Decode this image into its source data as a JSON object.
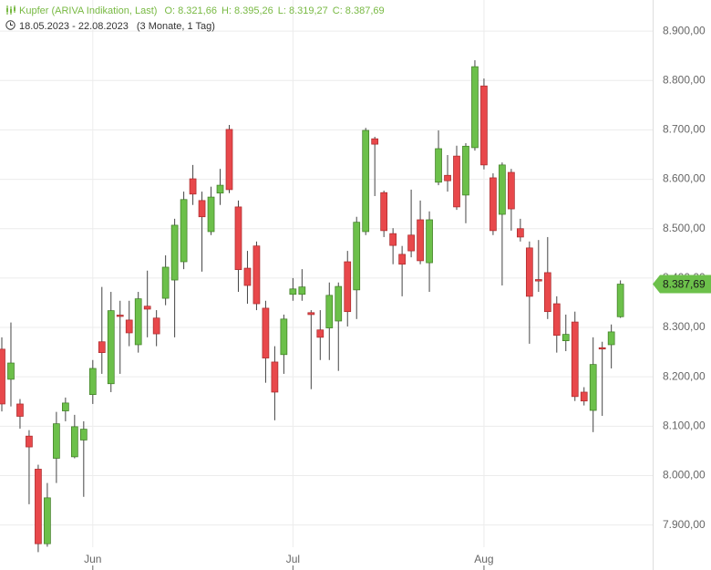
{
  "chart_data": {
    "type": "candlestick",
    "title": "Kupfer (ARIVA Indikation, Last)",
    "ohlc_header": [
      {
        "key": "O:",
        "value": "8.321,66"
      },
      {
        "key": "H:",
        "value": "8.395,26"
      },
      {
        "key": "L:",
        "value": "8.319,27"
      },
      {
        "key": "C:",
        "value": "8.387,69"
      }
    ],
    "date_range": "18.05.2023 - 22.08.2023",
    "period": "(3 Monate, 1 Tag)",
    "categories": [
      null,
      null,
      null,
      null,
      null,
      null,
      null,
      null,
      null,
      null,
      "Jun",
      null,
      null,
      null,
      null,
      null,
      null,
      null,
      null,
      null,
      null,
      null,
      null,
      null,
      null,
      null,
      null,
      null,
      null,
      null,
      null,
      null,
      "Jul",
      null,
      null,
      null,
      null,
      null,
      null,
      null,
      null,
      null,
      null,
      null,
      null,
      null,
      null,
      null,
      null,
      null,
      null,
      null,
      null,
      "Aug",
      null,
      null,
      null,
      null,
      null,
      null,
      null,
      null,
      null,
      null,
      null,
      null,
      null,
      null,
      null
    ],
    "series": [
      {
        "up_color": "#6cc04a",
        "down_color": "#e8484b",
        "open": [
          8256,
          8195,
          8145,
          8080,
          8013,
          7862,
          8035,
          8131,
          8038,
          8072,
          8164,
          8271,
          8186,
          8325,
          8315,
          8265,
          8343,
          8319,
          8359,
          8396,
          8433,
          8601,
          8557,
          8494,
          8572,
          8701,
          8544,
          8420,
          8465,
          8339,
          8230,
          8245,
          8367,
          8367,
          8330,
          8295,
          8299,
          8313,
          8433,
          8376,
          8494,
          8682,
          8573,
          8490,
          8448,
          8487,
          8518,
          8431,
          8594,
          8608,
          8647,
          8568,
          8664,
          8789,
          8603,
          8529,
          8614,
          8500,
          8461,
          8397,
          8411,
          8348,
          8273,
          8311,
          8169,
          8132,
          8259,
          8265,
          8321.66
        ],
        "high": [
          8280,
          8310,
          8155,
          8092,
          8022,
          7985,
          8129,
          8158,
          8123,
          8110,
          8234,
          8382,
          8372,
          8354,
          8354,
          8372,
          8415,
          8335,
          8446,
          8520,
          8575,
          8629,
          8575,
          8585,
          8621,
          8710,
          8557,
          8455,
          8474,
          8354,
          8262,
          8326,
          8400,
          8418,
          8335,
          8335,
          8391,
          8391,
          8455,
          8524,
          8704,
          8686,
          8577,
          8501,
          8465,
          8579,
          8557,
          8535,
          8699,
          8649,
          8668,
          8673,
          8841,
          8804,
          8612,
          8634,
          8621,
          8520,
          8474,
          8477,
          8483,
          8363,
          8326,
          8332,
          8179,
          8280,
          8271,
          8306,
          8395.26
        ],
        "low": [
          8130,
          8140,
          8095,
          7942,
          7845,
          7856,
          7985,
          8110,
          8035,
          7957,
          8145,
          8206,
          8169,
          8206,
          8262,
          8249,
          8280,
          8262,
          8345,
          8280,
          8418,
          8548,
          8413,
          8487,
          8548,
          8572,
          8372,
          8348,
          8335,
          8188,
          8112,
          8206,
          8354,
          8354,
          8175,
          8234,
          8234,
          8212,
          8302,
          8317,
          8487,
          8566,
          8483,
          8428,
          8363,
          8442,
          8428,
          8372,
          8588,
          8575,
          8538,
          8511,
          8658,
          8620,
          8487,
          8385,
          8496,
          8474,
          8267,
          8372,
          8317,
          8249,
          8252,
          8151,
          8142,
          8088,
          8121,
          8217,
          8319.27
        ],
        "close": [
          8145,
          8228,
          8120,
          8058,
          7862,
          7955,
          8105,
          8147,
          8099,
          8094,
          8217,
          8249,
          8334,
          8323,
          8289,
          8358,
          8337,
          8287,
          8422,
          8507,
          8559,
          8570,
          8524,
          8564,
          8588,
          8579,
          8417,
          8385,
          8348,
          8238,
          8169,
          8317,
          8378,
          8382,
          8326,
          8280,
          8365,
          8383,
          8332,
          8513,
          8699,
          8671,
          8496,
          8466,
          8428,
          8455,
          8435,
          8518,
          8662,
          8597,
          8544,
          8667,
          8828,
          8629,
          8496,
          8629,
          8540,
          8483,
          8363,
          8394,
          8332,
          8284,
          8286,
          8160,
          8151,
          8225,
          8257,
          8291,
          8387.69
        ]
      }
    ],
    "last_price": {
      "value": 8387.69,
      "label": "8.387,69"
    },
    "ylim": [
      7855,
      8963
    ],
    "yticks": [
      {
        "value": 7900,
        "label": "7.900,00"
      },
      {
        "value": 8000,
        "label": "8.000,00"
      },
      {
        "value": 8100,
        "label": "8.100,00"
      },
      {
        "value": 8200,
        "label": "8.200,00"
      },
      {
        "value": 8300,
        "label": "8.300,00"
      },
      {
        "value": 8400,
        "label": "8.400,00"
      },
      {
        "value": 8500,
        "label": "8.500,00"
      },
      {
        "value": 8600,
        "label": "8.600,00"
      },
      {
        "value": 8700,
        "label": "8.700,00"
      },
      {
        "value": 8800,
        "label": "8.800,00"
      },
      {
        "value": 8900,
        "label": "8.900,00"
      }
    ],
    "grid": true
  }
}
